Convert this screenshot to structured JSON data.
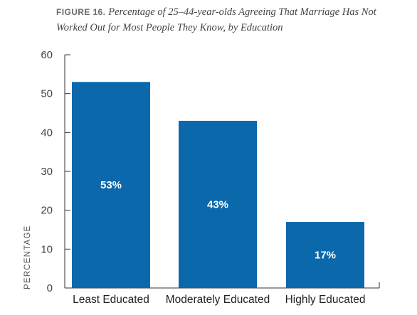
{
  "figure": {
    "label": "FIGURE 16.",
    "title": "Percentage of 25–44-year-olds Agreeing That Marriage Has Not Worked Out for Most People They Know, by Education"
  },
  "chart_data": {
    "type": "bar",
    "categories": [
      "Least Educated",
      "Moderately Educated",
      "Highly Educated"
    ],
    "values": [
      53,
      43,
      17
    ],
    "data_labels": [
      "53%",
      "43%",
      "17%"
    ],
    "ylabel": "PERCENTAGE",
    "xlabel": "",
    "ylim": [
      0,
      60
    ],
    "yticks": [
      0,
      10,
      20,
      30,
      40,
      50,
      60
    ],
    "grid": false,
    "bar_color": "#0a68ab",
    "axis_color": "#333333"
  }
}
